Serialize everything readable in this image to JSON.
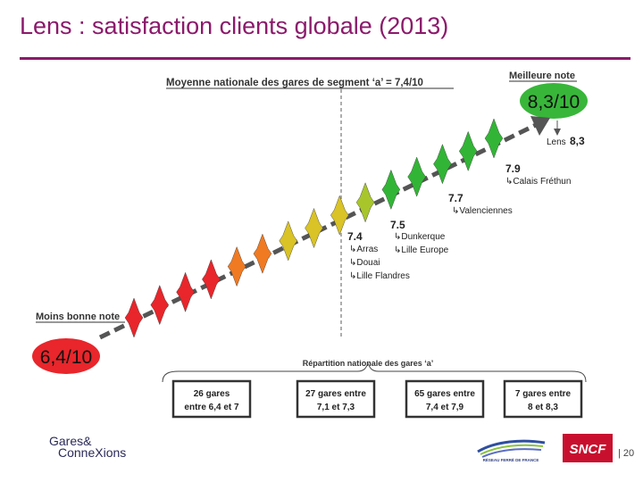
{
  "slide": {
    "title": "Lens : satisfaction clients globale (2013)",
    "page_number": "| 20"
  },
  "header_note": "Moyenne nationale des gares de segment ‘a’ = 7,4/10",
  "best": {
    "label": "Meilleure note",
    "value": "8,3/10",
    "lens_label": "Lens",
    "lens_value": "8,3"
  },
  "worst": {
    "label": "Moins bonne note",
    "value": "6,4/10"
  },
  "annotations": [
    {
      "score": "7.9",
      "stations": [
        "Calais Fréthun"
      ]
    },
    {
      "score": "7.7",
      "stations": [
        "Valenciennes"
      ]
    },
    {
      "score": "7.5",
      "stations": [
        "Dunkerque",
        "Lille Europe"
      ]
    },
    {
      "score": "7.4",
      "stations": [
        "Arras",
        "Douai",
        "Lille Flandres"
      ]
    }
  ],
  "distribution": {
    "title": "Répartition nationale des gares ‘a’",
    "boxes": [
      {
        "line1": "26 gares",
        "line2": "entre 6,4 et 7"
      },
      {
        "line1": "27 gares entre",
        "line2": "7,1 et 7,3"
      },
      {
        "line1": "65 gares entre",
        "line2": "7,4 et 7,9"
      },
      {
        "line1": "7 gares entre",
        "line2": "8 et 8,3"
      }
    ]
  },
  "stars": [
    {
      "score": 6.4,
      "color": "red"
    },
    {
      "score": 6.6,
      "color": "red"
    },
    {
      "score": 6.8,
      "color": "red"
    },
    {
      "score": 6.95,
      "color": "red"
    },
    {
      "score": 7.1,
      "color": "orange"
    },
    {
      "score": 7.2,
      "color": "orange"
    },
    {
      "score": 7.3,
      "color": "yellow"
    },
    {
      "score": 7.4,
      "color": "yellow"
    },
    {
      "score": 7.5,
      "color": "yellow"
    },
    {
      "score": 7.6,
      "color": "yellow-green"
    },
    {
      "score": 7.7,
      "color": "green"
    },
    {
      "score": 7.85,
      "color": "green"
    },
    {
      "score": 8.0,
      "color": "green"
    },
    {
      "score": 8.15,
      "color": "green"
    },
    {
      "score": 8.3,
      "color": "green"
    }
  ],
  "colors": {
    "title": "#8b1a6b",
    "red": "#e8262b",
    "orange": "#f07a22",
    "yellow": "#d9c326",
    "yellow-green": "#a8c62c",
    "green": "#32b536",
    "arrow": "#555555"
  },
  "logos": {
    "gares_connexions": [
      "Gares&",
      "ConneXions"
    ],
    "rff": "RÉSEAU FERRÉ DE FRANCE",
    "sncf": "SNCF"
  }
}
